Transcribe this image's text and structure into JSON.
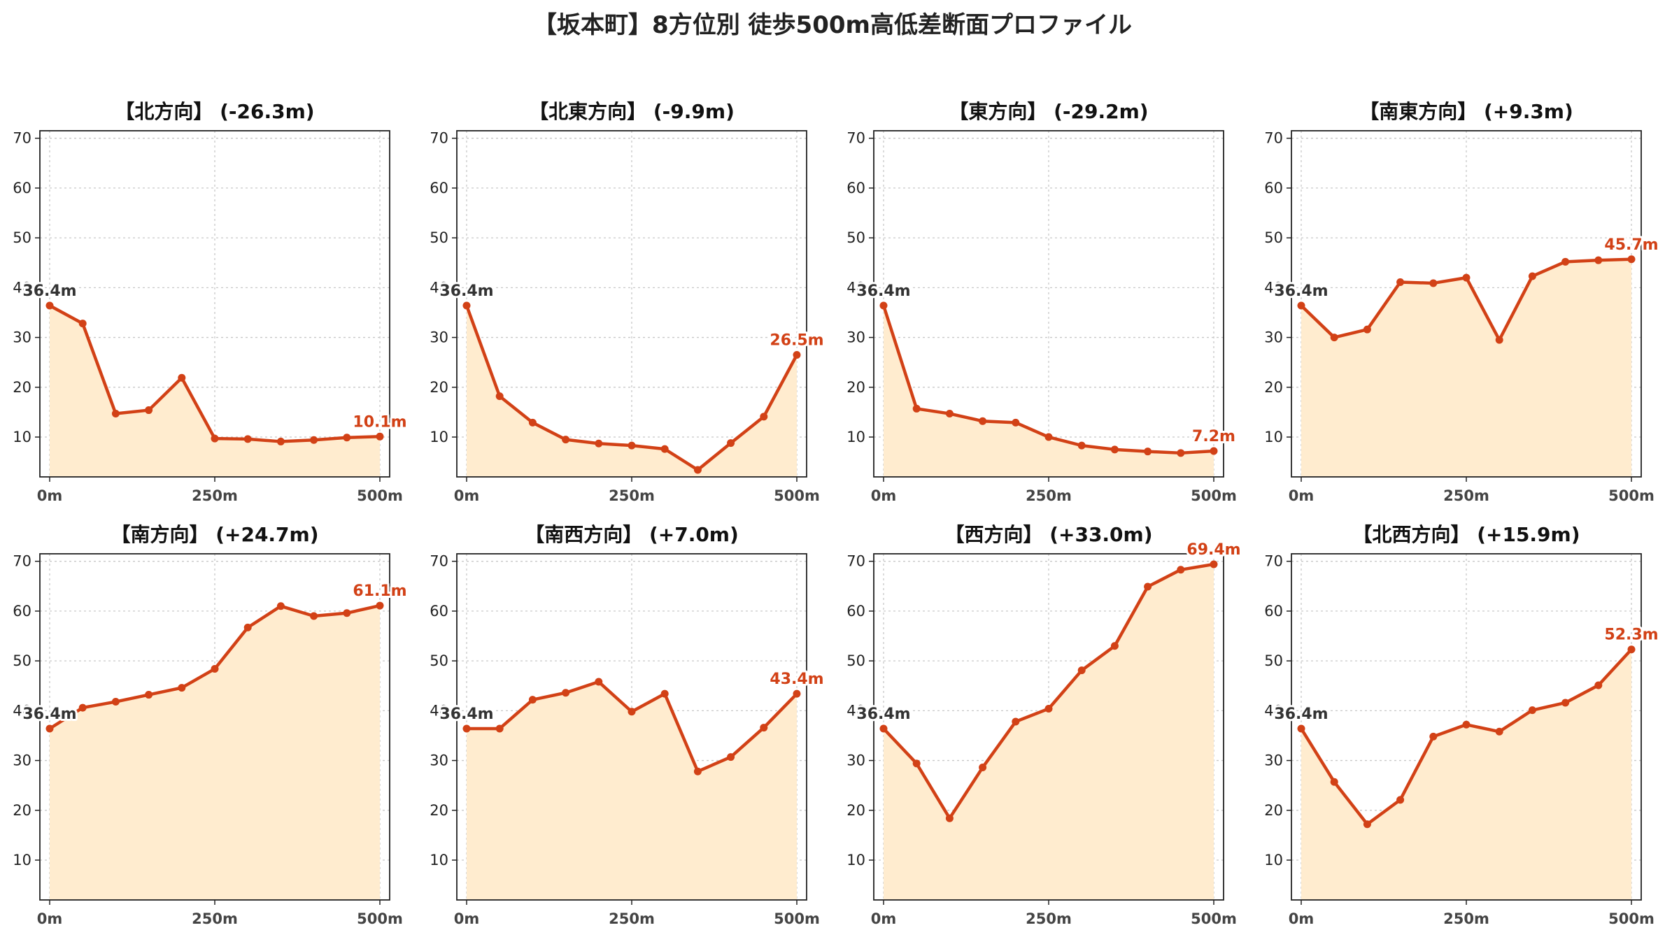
{
  "suptitle": "【坂本町】8方位別 徒歩500m高低差断面プロファイル",
  "colors": {
    "line": "#d24116",
    "fill": "#ffeccf",
    "grid": "#c8c8c8",
    "start_label": "#333333",
    "end_label": "#d24116"
  },
  "chart_data": [
    {
      "type": "area",
      "title": "【北方向】 (-26.3m)",
      "x": [
        0,
        50,
        100,
        150,
        200,
        250,
        300,
        350,
        400,
        450,
        500
      ],
      "y": [
        36.4,
        32.8,
        14.7,
        15.4,
        21.9,
        9.7,
        9.6,
        9.1,
        9.4,
        9.9,
        10.1
      ],
      "xticks": [
        "0m",
        "250m",
        "500m"
      ],
      "yticks": [
        10,
        20,
        30,
        40,
        50,
        60,
        70
      ],
      "ylim": [
        2,
        71.5
      ],
      "start_label": "36.4m",
      "end_label": "10.1m",
      "grid": true
    },
    {
      "type": "area",
      "title": "【北東方向】 (-9.9m)",
      "x": [
        0,
        50,
        100,
        150,
        200,
        250,
        300,
        350,
        400,
        450,
        500
      ],
      "y": [
        36.4,
        18.2,
        12.9,
        9.5,
        8.7,
        8.3,
        7.6,
        3.4,
        8.8,
        14.1,
        26.5
      ],
      "xticks": [
        "0m",
        "250m",
        "500m"
      ],
      "yticks": [
        10,
        20,
        30,
        40,
        50,
        60,
        70
      ],
      "ylim": [
        2,
        71.5
      ],
      "start_label": "36.4m",
      "end_label": "26.5m",
      "grid": true
    },
    {
      "type": "area",
      "title": "【東方向】 (-29.2m)",
      "x": [
        0,
        50,
        100,
        150,
        200,
        250,
        300,
        350,
        400,
        450,
        500
      ],
      "y": [
        36.4,
        15.7,
        14.7,
        13.2,
        12.9,
        10.0,
        8.3,
        7.5,
        7.1,
        6.8,
        7.2
      ],
      "xticks": [
        "0m",
        "250m",
        "500m"
      ],
      "yticks": [
        10,
        20,
        30,
        40,
        50,
        60,
        70
      ],
      "ylim": [
        2,
        71.5
      ],
      "start_label": "36.4m",
      "end_label": "7.2m",
      "grid": true
    },
    {
      "type": "area",
      "title": "【南東方向】 (+9.3m)",
      "x": [
        0,
        50,
        100,
        150,
        200,
        250,
        300,
        350,
        400,
        450,
        500
      ],
      "y": [
        36.4,
        30.0,
        31.6,
        41.1,
        40.9,
        42.0,
        29.5,
        42.3,
        45.2,
        45.5,
        45.7
      ],
      "xticks": [
        "0m",
        "250m",
        "500m"
      ],
      "yticks": [
        10,
        20,
        30,
        40,
        50,
        60,
        70
      ],
      "ylim": [
        2,
        71.5
      ],
      "start_label": "36.4m",
      "end_label": "45.7m",
      "grid": true
    },
    {
      "type": "area",
      "title": "【南方向】 (+24.7m)",
      "x": [
        0,
        50,
        100,
        150,
        200,
        250,
        300,
        350,
        400,
        450,
        500
      ],
      "y": [
        36.4,
        40.6,
        41.8,
        43.2,
        44.6,
        48.4,
        56.7,
        61.0,
        59.0,
        59.6,
        61.1
      ],
      "xticks": [
        "0m",
        "250m",
        "500m"
      ],
      "yticks": [
        10,
        20,
        30,
        40,
        50,
        60,
        70
      ],
      "ylim": [
        2,
        71.5
      ],
      "start_label": "36.4m",
      "end_label": "61.1m",
      "grid": true
    },
    {
      "type": "area",
      "title": "【南西方向】 (+7.0m)",
      "x": [
        0,
        50,
        100,
        150,
        200,
        250,
        300,
        350,
        400,
        450,
        500
      ],
      "y": [
        36.4,
        36.4,
        42.2,
        43.6,
        45.8,
        39.8,
        43.4,
        27.8,
        30.7,
        36.6,
        43.4
      ],
      "xticks": [
        "0m",
        "250m",
        "500m"
      ],
      "yticks": [
        10,
        20,
        30,
        40,
        50,
        60,
        70
      ],
      "ylim": [
        2,
        71.5
      ],
      "start_label": "36.4m",
      "end_label": "43.4m",
      "grid": true
    },
    {
      "type": "area",
      "title": "【西方向】 (+33.0m)",
      "x": [
        0,
        50,
        100,
        150,
        200,
        250,
        300,
        350,
        400,
        450,
        500
      ],
      "y": [
        36.4,
        29.4,
        18.4,
        28.6,
        37.8,
        40.4,
        48.1,
        53.0,
        64.9,
        68.3,
        69.4
      ],
      "xticks": [
        "0m",
        "250m",
        "500m"
      ],
      "yticks": [
        10,
        20,
        30,
        40,
        50,
        60,
        70
      ],
      "ylim": [
        2,
        71.5
      ],
      "start_label": "36.4m",
      "end_label": "69.4m",
      "grid": true
    },
    {
      "type": "area",
      "title": "【北西方向】 (+15.9m)",
      "x": [
        0,
        50,
        100,
        150,
        200,
        250,
        300,
        350,
        400,
        450,
        500
      ],
      "y": [
        36.4,
        25.7,
        17.2,
        22.1,
        34.8,
        37.2,
        35.8,
        40.1,
        41.6,
        45.1,
        52.3
      ],
      "xticks": [
        "0m",
        "250m",
        "500m"
      ],
      "yticks": [
        10,
        20,
        30,
        40,
        50,
        60,
        70
      ],
      "ylim": [
        2,
        71.5
      ],
      "start_label": "36.4m",
      "end_label": "52.3m",
      "grid": true
    }
  ]
}
